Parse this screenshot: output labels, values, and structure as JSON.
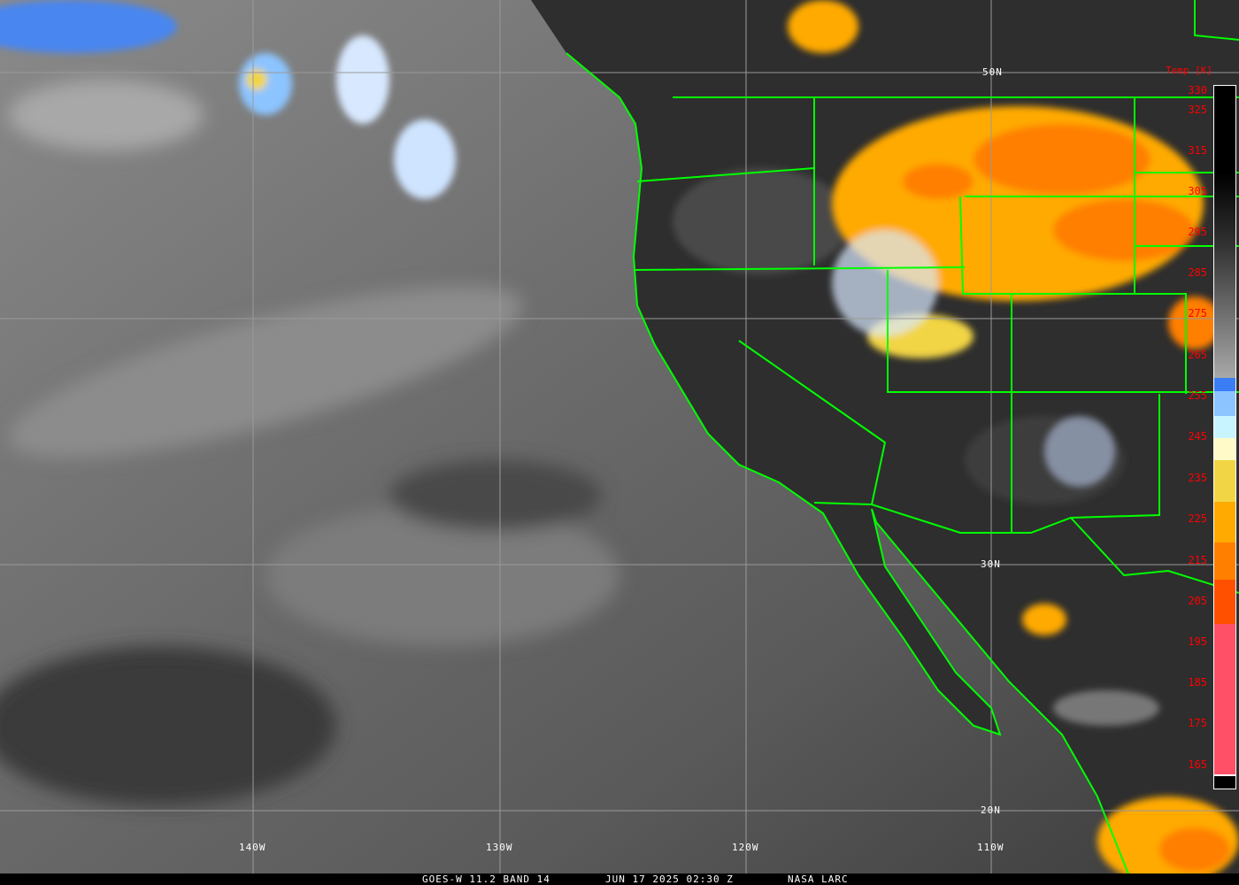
{
  "caption": {
    "satellite": "GOES-W 11.2 BAND 14",
    "datetime": "JUN 17 2025 02:30 Z",
    "credit": "NASA LARC"
  },
  "colorbar": {
    "title": "Temp [K]",
    "ticks": [
      "330",
      "325",
      "315",
      "305",
      "295",
      "285",
      "275",
      "265",
      "255",
      "245",
      "235",
      "225",
      "215",
      "205",
      "195",
      "185",
      "175",
      "165"
    ],
    "colors": {
      "blue": "#3b7df5",
      "light_blue": "#8cc4ff",
      "cyan": "#c8f4ff",
      "pale_yellow": "#fffac8",
      "yellow": "#f2d544",
      "amber": "#ffaa00",
      "orange": "#ff7f00",
      "red_orange": "#ff5000",
      "pink": "#ff5068"
    }
  },
  "grid": {
    "lat_labels": [
      "50N",
      "30N",
      "20N"
    ],
    "lon_labels": [
      "140W",
      "130W",
      "120W",
      "110W"
    ]
  },
  "colors": {
    "border": "#00ff00",
    "grid": "#9a9a9a"
  }
}
